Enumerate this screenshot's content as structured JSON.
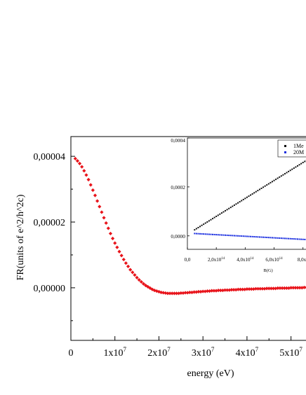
{
  "chart_data": [
    {
      "type": "scatter",
      "title": "",
      "xlabel": "energy (eV)",
      "ylabel": "FR(units of e^2/h^2c)",
      "xlim": [
        0,
        55000000
      ],
      "ylim": [
        -1.6e-05,
        4.6e-05
      ],
      "x_ticks": [
        {
          "value": 0,
          "mant": "0",
          "exp": ""
        },
        {
          "value": 10000000,
          "mant": "1x10",
          "exp": "7"
        },
        {
          "value": 20000000,
          "mant": "2x10",
          "exp": "7"
        },
        {
          "value": 30000000,
          "mant": "3x10",
          "exp": "7"
        },
        {
          "value": 40000000,
          "mant": "4x10",
          "exp": "7"
        },
        {
          "value": 50000000,
          "mant": "5x10",
          "exp": "7"
        }
      ],
      "y_ticks": [
        {
          "value": 4e-05,
          "label": "0,00004"
        },
        {
          "value": 2e-05,
          "label": "0,00002"
        },
        {
          "value": 0.0,
          "label": "0,00000"
        }
      ],
      "series": [
        {
          "color": "#e8141b",
          "marker": "diamond",
          "x": [
            1000000,
            1500000,
            2000000,
            2500000,
            3000000,
            3500000,
            4000000,
            4500000,
            5000000,
            5500000,
            6000000,
            6500000,
            7000000,
            7500000,
            8000000,
            8500000,
            9000000,
            9500000,
            10000000,
            10500000,
            11000000,
            11500000,
            12000000,
            12500000,
            13000000,
            13500000,
            14000000,
            14500000,
            15000000,
            15500000,
            16000000,
            16500000,
            17000000,
            17500000,
            18000000,
            18500000,
            19000000,
            19500000,
            20000000,
            20500000,
            21000000,
            21500000,
            22000000,
            22500000,
            23000000,
            23500000,
            24000000,
            24500000,
            25000000,
            25500000,
            26000000,
            26500000,
            27000000,
            27500000,
            28000000,
            28500000,
            29000000,
            29500000,
            30000000,
            30500000,
            31000000,
            31500000,
            32000000,
            32500000,
            33000000,
            33500000,
            34000000,
            34500000,
            35000000,
            35500000,
            36000000,
            36500000,
            37000000,
            37500000,
            38000000,
            38500000,
            39000000,
            39500000,
            40000000,
            40500000,
            41000000,
            41500000,
            42000000,
            42500000,
            43000000,
            43500000,
            44000000,
            44500000,
            45000000,
            45500000,
            46000000,
            46500000,
            47000000,
            47500000,
            48000000,
            48500000,
            49000000,
            49500000,
            50000000,
            50500000,
            51000000,
            51500000,
            52000000,
            52500000,
            53000000,
            53500000,
            54000000,
            54500000,
            55000000
          ],
          "y": [
            3.93e-05,
            3.86e-05,
            3.78e-05,
            3.68e-05,
            3.56e-05,
            3.43e-05,
            3.29e-05,
            3.13e-05,
            2.97e-05,
            2.81e-05,
            2.64e-05,
            2.47e-05,
            2.3e-05,
            2.13e-05,
            1.97e-05,
            1.81e-05,
            1.65e-05,
            1.5e-05,
            1.36e-05,
            1.23e-05,
            1.1e-05,
            9.8e-06,
            8.6e-06,
            7.5e-06,
            6.5e-06,
            5.5e-06,
            4.7e-06,
            3.9e-06,
            3.1e-06,
            2.4e-06,
            1.8e-06,
            1.2e-06,
            7e-07,
            3e-07,
            -1e-07,
            -5e-07,
            -8e-07,
            -1e-06,
            -1.2e-06,
            -1.4e-06,
            -1.5e-06,
            -1.6e-06,
            -1.7e-06,
            -1.7e-06,
            -1.7e-06,
            -1.7e-06,
            -1.7e-06,
            -1.7e-06,
            -1.6e-06,
            -1.6e-06,
            -1.5e-06,
            -1.5e-06,
            -1.4e-06,
            -1.4e-06,
            -1.3e-06,
            -1.3e-06,
            -1.2e-06,
            -1.2e-06,
            -1.1e-06,
            -1.1e-06,
            -1e-06,
            -1e-06,
            -9e-07,
            -9e-07,
            -9e-07,
            -8e-07,
            -8e-07,
            -8e-07,
            -7e-07,
            -7e-07,
            -7e-07,
            -6e-07,
            -6e-07,
            -6e-07,
            -5e-07,
            -5e-07,
            -5e-07,
            -5e-07,
            -4e-07,
            -4e-07,
            -4e-07,
            -4e-07,
            -3e-07,
            -3e-07,
            -3e-07,
            -3e-07,
            -3e-07,
            -2e-07,
            -2e-07,
            -2e-07,
            -2e-07,
            -2e-07,
            -1e-07,
            -1e-07,
            -1e-07,
            -1e-07,
            -1e-07,
            -1e-07,
            0.0,
            0.0,
            0.0,
            0.0,
            0.0,
            0.0,
            1e-07,
            1e-07,
            1e-07,
            1e-07,
            1e-07
          ]
        }
      ]
    },
    {
      "type": "scatter",
      "title": "",
      "xlabel": "B(G)",
      "ylabel": "",
      "xlim": [
        0,
        850000000000000
      ],
      "ylim": [
        -5.5e-05,
        0.0004
      ],
      "x_ticks": [
        {
          "value": 0,
          "mant": "0,0",
          "exp": ""
        },
        {
          "value": 200000000000000,
          "mant": "2,0x10",
          "exp": "14"
        },
        {
          "value": 400000000000000,
          "mant": "4,0x10",
          "exp": "14"
        },
        {
          "value": 600000000000000,
          "mant": "6,0x10",
          "exp": "14"
        },
        {
          "value": 800000000000000,
          "mant": "8,0x1",
          "exp": ""
        }
      ],
      "y_ticks": [
        {
          "value": 0.0004,
          "label": "0,0004"
        },
        {
          "value": 0.0002,
          "label": "0,0002"
        },
        {
          "value": 0.0,
          "label": "0,0000"
        }
      ],
      "legend": {
        "position": "top-right"
      },
      "series": [
        {
          "name": "1Me",
          "color": "#111111",
          "x": [
            50000000000000,
            62500000000000,
            75000000000000,
            87500000000000,
            100000000000000,
            112500000000000,
            125000000000000,
            137500000000000,
            150000000000000,
            162500000000000,
            175000000000000,
            187500000000000,
            200000000000000,
            212500000000000,
            225000000000000,
            237500000000000,
            250000000000000,
            262500000000000,
            275000000000000,
            287500000000000,
            300000000000000,
            312500000000000,
            325000000000000,
            337500000000000,
            350000000000000,
            362500000000000,
            375000000000000,
            387500000000000,
            400000000000000,
            412500000000000,
            425000000000000,
            437500000000000,
            450000000000000,
            462500000000000,
            475000000000000,
            487500000000000,
            500000000000000,
            512500000000000,
            525000000000000,
            537500000000000,
            550000000000000,
            562500000000000,
            575000000000000,
            587500000000000,
            600000000000000,
            612500000000000,
            625000000000000,
            637500000000000,
            650000000000000,
            662500000000000,
            675000000000000,
            687500000000000,
            700000000000000,
            712500000000000,
            725000000000000,
            737500000000000,
            750000000000000,
            762500000000000,
            775000000000000,
            787500000000000,
            800000000000000,
            812500000000000,
            825000000000000,
            837500000000000,
            850000000000000
          ],
          "y": [
            2.47e-05,
            2.93e-05,
            3.38e-05,
            3.84e-05,
            4.3e-05,
            4.76e-05,
            5.22e-05,
            5.67e-05,
            6.13e-05,
            6.59e-05,
            7.05e-05,
            7.51e-05,
            7.97e-05,
            8.42e-05,
            8.88e-05,
            9.34e-05,
            9.8e-05,
            0.0001026,
            0.0001072,
            0.0001117,
            0.0001163,
            0.0001209,
            0.0001255,
            0.0001301,
            0.0001347,
            0.0001392,
            0.0001438,
            0.0001484,
            0.000153,
            0.0001576,
            0.0001622,
            0.0001667,
            0.0001713,
            0.0001759,
            0.0001805,
            0.0001851,
            0.0001897,
            0.0001942,
            0.0001988,
            0.0002034,
            0.000208,
            0.0002126,
            0.0002172,
            0.0002217,
            0.0002263,
            0.0002309,
            0.0002355,
            0.0002401,
            0.0002447,
            0.0002492,
            0.0002538,
            0.0002584,
            0.000263,
            0.0002676,
            0.0002722,
            0.0002767,
            0.0002813,
            0.0002859,
            0.0002905,
            0.0002951,
            0.0002997,
            0.0003042,
            0.0003088,
            0.0003134,
            0.000318
          ]
        },
        {
          "name": "20M",
          "color": "#1a2ee0",
          "x": [
            50000000000000,
            62500000000000,
            75000000000000,
            87500000000000,
            100000000000000,
            112500000000000,
            125000000000000,
            137500000000000,
            150000000000000,
            162500000000000,
            175000000000000,
            187500000000000,
            200000000000000,
            212500000000000,
            225000000000000,
            237500000000000,
            250000000000000,
            262500000000000,
            275000000000000,
            287500000000000,
            300000000000000,
            312500000000000,
            325000000000000,
            337500000000000,
            350000000000000,
            362500000000000,
            375000000000000,
            387500000000000,
            400000000000000,
            412500000000000,
            425000000000000,
            437500000000000,
            450000000000000,
            462500000000000,
            475000000000000,
            487500000000000,
            500000000000000,
            512500000000000,
            525000000000000,
            537500000000000,
            550000000000000,
            562500000000000,
            575000000000000,
            587500000000000,
            600000000000000,
            612500000000000,
            625000000000000,
            637500000000000,
            650000000000000,
            662500000000000,
            675000000000000,
            687500000000000,
            700000000000000,
            712500000000000,
            725000000000000,
            737500000000000,
            750000000000000,
            762500000000000,
            775000000000000,
            787500000000000,
            800000000000000,
            812500000000000,
            825000000000000,
            837500000000000,
            850000000000000
          ],
          "y": [
            9.6e-06,
            9.2e-06,
            8.8e-06,
            8.4e-06,
            8e-06,
            7.6e-06,
            7.2e-06,
            6.8e-06,
            6.4e-06,
            6e-06,
            5.6e-06,
            5.2e-06,
            4.8e-06,
            4.4e-06,
            4e-06,
            3.6e-06,
            3.2e-06,
            2.8e-06,
            2.4e-06,
            2e-06,
            1.6e-06,
            1.2e-06,
            8e-07,
            4e-07,
            0.0,
            -4e-07,
            -8e-07,
            -1.2e-06,
            -1.6e-06,
            -2e-06,
            -2.4e-06,
            -2.8e-06,
            -3.2e-06,
            -3.6e-06,
            -4e-06,
            -4.4e-06,
            -4.8e-06,
            -5.2e-06,
            -5.6e-06,
            -6e-06,
            -6.4e-06,
            -6.8e-06,
            -7.2e-06,
            -7.6e-06,
            -8e-06,
            -8.4e-06,
            -8.8e-06,
            -9.2e-06,
            -9.6e-06,
            -1e-05,
            -1.04e-05,
            -1.08e-05,
            -1.12e-05,
            -1.16e-05,
            -1.2e-05,
            -1.24e-05,
            -1.28e-05,
            -1.32e-05,
            -1.36e-05,
            -1.4e-05,
            -1.44e-05,
            -1.48e-05,
            -1.52e-05,
            -1.56e-05,
            -1.6e-05
          ]
        }
      ]
    }
  ]
}
